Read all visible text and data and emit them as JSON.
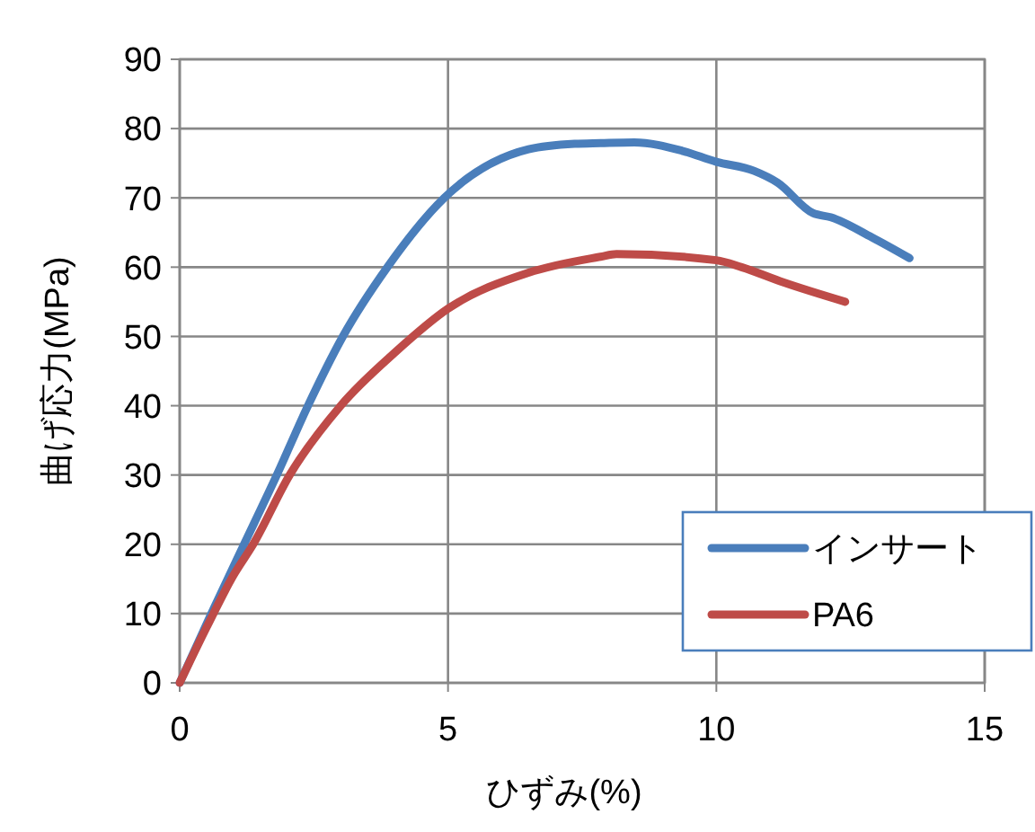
{
  "chart_data": {
    "type": "line",
    "xlabel": "ひずみ(%)",
    "ylabel": "曲げ応力(MPa)",
    "xlim": [
      0,
      15
    ],
    "ylim": [
      0,
      90
    ],
    "xticks": [
      0,
      5,
      10,
      15
    ],
    "yticks": [
      0,
      10,
      20,
      30,
      40,
      50,
      60,
      70,
      80,
      90
    ],
    "grid": true,
    "legend": "bottom right",
    "marker": "none",
    "line_style": "solid",
    "series": [
      {
        "name": "インサート",
        "color": "#4a7ebb",
        "x": [
          0,
          0.59,
          1.2,
          1.81,
          2.39,
          3.04,
          3.87,
          4.93,
          6.5,
          7.36,
          7.84,
          8.47,
          9.36,
          10,
          10.7,
          11.14,
          11.8,
          12.13,
          12.9,
          13.6
        ],
        "values": [
          0,
          10,
          20,
          30,
          40,
          50,
          60,
          70,
          77,
          77.8,
          77.9,
          78,
          76.8,
          75.2,
          73.9,
          72.2,
          67.8,
          67.2,
          64.3,
          61.3
        ]
      },
      {
        "name": "PA6",
        "color": "#be4b48",
        "x": [
          0,
          0.5,
          1,
          1.37,
          2.05,
          3,
          4,
          5,
          6.5,
          7.84,
          8.14,
          10,
          10.47,
          11.25,
          12.4
        ],
        "values": [
          0,
          8,
          15.5,
          20,
          30,
          40,
          47.6,
          54,
          59.2,
          61.5,
          61.9,
          61,
          60,
          57.8,
          55
        ]
      }
    ]
  }
}
